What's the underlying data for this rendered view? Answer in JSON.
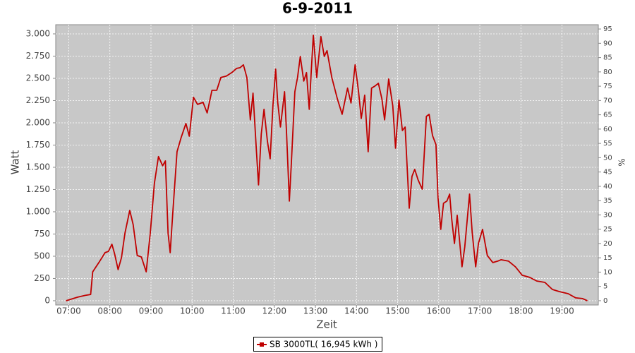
{
  "chart_data": {
    "type": "line",
    "title": "6-9-2011",
    "x_label": "Zeit",
    "y_label": "Watt",
    "y2_label": "%",
    "x": [
      "06:56",
      "07:03",
      "07:13",
      "07:24",
      "07:32",
      "07:35",
      "07:44",
      "07:53",
      "07:58",
      "08:03",
      "08:07",
      "08:12",
      "08:17",
      "08:22",
      "08:29",
      "08:34",
      "08:40",
      "08:46",
      "08:53",
      "08:59",
      "09:05",
      "09:11",
      "09:17",
      "09:21",
      "09:25",
      "09:28",
      "09:32",
      "09:38",
      "09:44",
      "09:51",
      "09:56",
      "10:02",
      "10:08",
      "10:16",
      "10:22",
      "10:29",
      "10:36",
      "10:42",
      "10:50",
      "10:58",
      "11:05",
      "11:10",
      "11:15",
      "11:20",
      "11:25",
      "11:29",
      "11:34",
      "11:37",
      "11:41",
      "11:45",
      "11:50",
      "11:54",
      "11:58",
      "12:02",
      "12:05",
      "12:09",
      "12:15",
      "12:18",
      "12:22",
      "12:25",
      "12:30",
      "12:34",
      "12:38",
      "12:43",
      "12:47",
      "12:51",
      "12:54",
      "12:57",
      "13:02",
      "13:08",
      "13:13",
      "13:17",
      "13:24",
      "13:32",
      "13:39",
      "13:47",
      "13:52",
      "13:58",
      "14:03",
      "14:07",
      "14:12",
      "14:17",
      "14:22",
      "14:27",
      "14:32",
      "14:37",
      "14:41",
      "14:47",
      "14:53",
      "14:57",
      "15:02",
      "15:07",
      "15:11",
      "15:17",
      "15:21",
      "15:25",
      "15:30",
      "15:36",
      "15:42",
      "15:46",
      "15:51",
      "15:56",
      "15:59",
      "16:03",
      "16:07",
      "16:12",
      "16:16",
      "16:19",
      "16:23",
      "16:27",
      "16:34",
      "16:38",
      "16:45",
      "16:49",
      "16:54",
      "16:58",
      "17:04",
      "17:11",
      "17:19",
      "17:26",
      "17:31",
      "17:42",
      "17:52",
      "18:02",
      "18:13",
      "18:23",
      "18:35",
      "18:46",
      "18:56",
      "19:09",
      "19:20",
      "19:30",
      "19:37"
    ],
    "series": [
      {
        "name": "SB 3000TL( 16,945 kWh )",
        "color": "#c00000",
        "values": [
          0,
          16,
          40,
          60,
          70,
          325,
          430,
          540,
          555,
          635,
          525,
          350,
          485,
          760,
          1015,
          857,
          508,
          492,
          325,
          760,
          1318,
          1620,
          1517,
          1572,
          760,
          540,
          1000,
          1675,
          1834,
          1993,
          1850,
          2287,
          2207,
          2231,
          2112,
          2366,
          2366,
          2509,
          2525,
          2565,
          2612,
          2620,
          2652,
          2509,
          2033,
          2334,
          1675,
          1302,
          1874,
          2152,
          1794,
          1596,
          2191,
          2604,
          2231,
          1953,
          2350,
          1874,
          1120,
          1556,
          2350,
          2509,
          2747,
          2469,
          2565,
          2152,
          2588,
          2985,
          2509,
          2970,
          2747,
          2811,
          2509,
          2271,
          2096,
          2390,
          2223,
          2652,
          2350,
          2048,
          2311,
          1675,
          2390,
          2414,
          2445,
          2271,
          2033,
          2493,
          2191,
          1715,
          2255,
          1914,
          1953,
          1040,
          1398,
          1477,
          1358,
          1254,
          2072,
          2096,
          1858,
          1755,
          1159,
          802,
          1096,
          1120,
          1199,
          921,
          643,
          961,
          381,
          603,
          1199,
          762,
          381,
          643,
          802,
          508,
          429,
          445,
          461,
          445,
          381,
          286,
          262,
          222,
          206,
          127,
          103,
          79,
          32,
          24,
          0
        ]
      }
    ],
    "xlim": [
      "06:41",
      "19:53"
    ],
    "xticks": [
      "07:00",
      "08:00",
      "09:00",
      "10:00",
      "11:00",
      "12:00",
      "13:00",
      "14:00",
      "15:00",
      "16:00",
      "17:00",
      "18:00",
      "19:00"
    ],
    "ylim": [
      -48,
      3103
    ],
    "yticks": [
      0,
      250,
      500,
      750,
      {
        "value": 1000,
        "label": "1.000"
      },
      {
        "value": 1250,
        "label": "1.250"
      },
      {
        "value": 1500,
        "label": "1.500"
      },
      {
        "value": 1750,
        "label": "1.750"
      },
      {
        "value": 2000,
        "label": "2.000"
      },
      {
        "value": 2250,
        "label": "2.250"
      },
      {
        "value": 2500,
        "label": "2.500"
      },
      {
        "value": 2750,
        "label": "2.750"
      },
      {
        "value": 3000,
        "label": "3.000"
      }
    ],
    "y2lim": [
      -1.5,
      96.5
    ],
    "y2ticks": [
      0,
      5,
      10,
      15,
      20,
      25,
      30,
      35,
      40,
      45,
      50,
      55,
      60,
      65,
      70,
      75,
      80,
      85,
      90,
      95
    ],
    "grid": true,
    "plot_background": "#c8c8c8",
    "legend_position": "bottom"
  }
}
